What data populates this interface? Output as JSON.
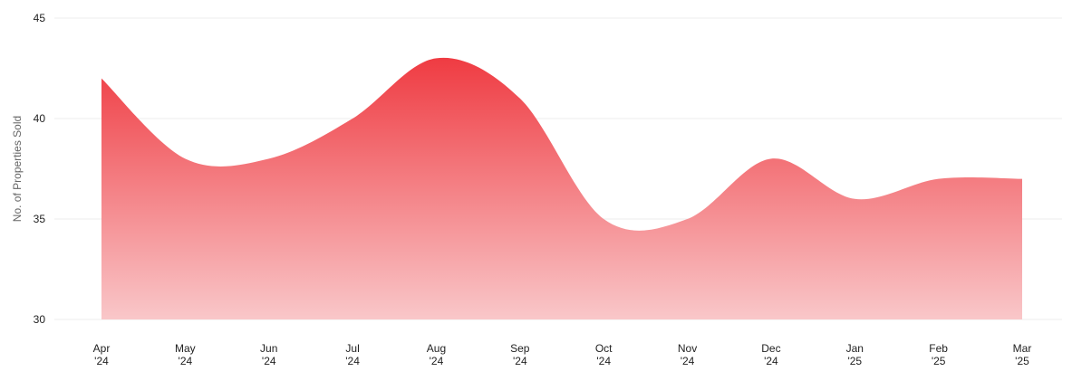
{
  "chart_data": {
    "type": "area",
    "title": "",
    "xlabel": "",
    "ylabel": "No. of Properties Sold",
    "categories": [
      [
        "Apr",
        "'24"
      ],
      [
        "May",
        "'24"
      ],
      [
        "Jun",
        "'24"
      ],
      [
        "Jul",
        "'24"
      ],
      [
        "Aug",
        "'24"
      ],
      [
        "Sep",
        "'24"
      ],
      [
        "Oct",
        "'24"
      ],
      [
        "Nov",
        "'24"
      ],
      [
        "Dec",
        "'24"
      ],
      [
        "Jan",
        "'25"
      ],
      [
        "Feb",
        "'25"
      ],
      [
        "Mar",
        "'25"
      ]
    ],
    "series": [
      {
        "values": [
          42,
          38,
          38,
          40,
          43,
          41,
          35,
          35,
          38,
          36,
          37,
          37
        ]
      }
    ],
    "ylim": [
      30,
      45
    ],
    "yticks": [
      30,
      35,
      40,
      45
    ],
    "grid": true,
    "legend": "none",
    "colors": {
      "fill_top": "#ef3b42",
      "fill_bottom": "#f9c7c9",
      "grid": "#ececec",
      "text": "#222222"
    }
  }
}
